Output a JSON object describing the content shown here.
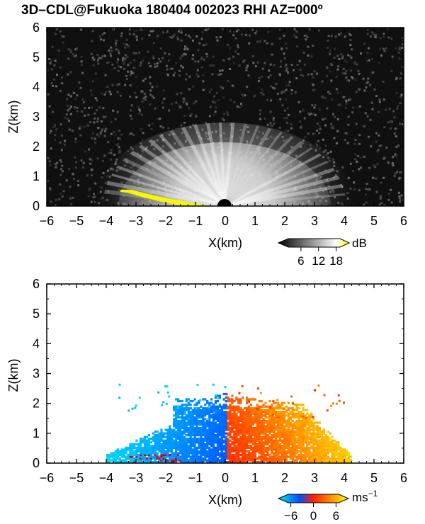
{
  "title": "3D–CDL@Fukuoka 180404 002023 RHI AZ=000º",
  "chart_data": [
    {
      "type": "heatmap",
      "panel": "reflectivity",
      "xlabel": "X(km)",
      "ylabel": "Z(km)",
      "xlim": [
        -6,
        6
      ],
      "ylim": [
        0,
        6
      ],
      "xticks": [
        "−6",
        "−5",
        "−4",
        "−3",
        "−2",
        "−1",
        "0",
        "1",
        "2",
        "3",
        "4",
        "5",
        "6"
      ],
      "yticks": [
        "0",
        "1",
        "2",
        "3",
        "4",
        "5",
        "6"
      ],
      "grid": false,
      "colorbar": {
        "unit": "dB",
        "ticks": [
          "6",
          "12",
          "18"
        ],
        "tick_values": [
          6,
          12,
          18
        ],
        "range": [
          0,
          21
        ],
        "colors": [
          "#000000",
          "#ffffff",
          "#f7f700"
        ]
      },
      "description_values": {
        "echo_top_km": 2.7,
        "strong_echo_top_km": 2.1,
        "x_extent_km": [
          -3.5,
          4.2
        ]
      }
    },
    {
      "type": "heatmap",
      "panel": "doppler_velocity",
      "xlabel": "X(km)",
      "ylabel": "Z(km)",
      "xlim": [
        -6,
        6
      ],
      "ylim": [
        0,
        6
      ],
      "xticks": [
        "−6",
        "−5",
        "−4",
        "−3",
        "−2",
        "−1",
        "0",
        "1",
        "2",
        "3",
        "4",
        "5",
        "6"
      ],
      "yticks": [
        "0",
        "1",
        "2",
        "3",
        "4",
        "5",
        "6"
      ],
      "grid": false,
      "colorbar": {
        "unit": "ms",
        "unit_superscript": "−1",
        "ticks": [
          "−6",
          "0",
          "6"
        ],
        "tick_values": [
          -6,
          0,
          6
        ],
        "range": [
          -8,
          8
        ],
        "colors": [
          "#00e8e8",
          "#0050ff",
          "#ff2000",
          "#ffff00"
        ]
      },
      "description_values": {
        "echo_top_km": 2.6,
        "x_extent_km": [
          -4,
          4.2
        ],
        "negative_side": "x < 0",
        "positive_side": "x > 0"
      }
    }
  ]
}
